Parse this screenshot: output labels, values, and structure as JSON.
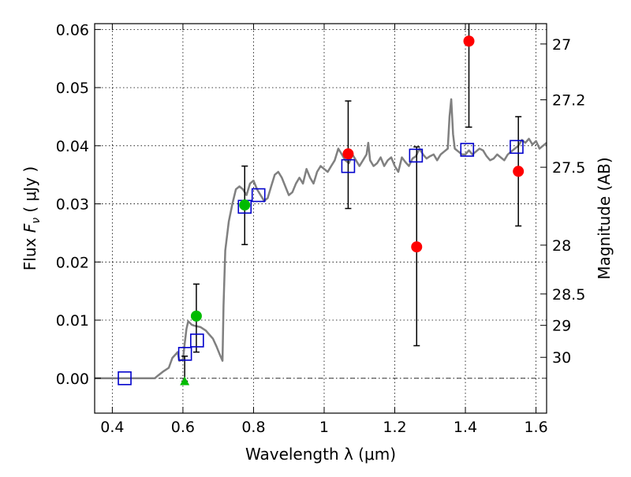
{
  "chart_data": {
    "type": "scatter",
    "xlabel": "Wavelength  λ (μm)",
    "ylabel": "Flux  F_ν  ( μJy )",
    "ylabel_parts": {
      "prefix": "Flux  ",
      "symbol": "F",
      "subscript": "ν",
      "unit": "  ( μJy )"
    },
    "y2label": "Magnitude (AB)",
    "xlim": [
      0.35,
      1.63
    ],
    "ylim": [
      -0.006,
      0.061
    ],
    "xticks": [
      0.4,
      0.6,
      0.8,
      1.0,
      1.2,
      1.4,
      1.6
    ],
    "xtick_labels": [
      "0.4",
      "0.6",
      "0.8",
      "1",
      "1.2",
      "1.4",
      "1.6"
    ],
    "yticks": [
      0.0,
      0.01,
      0.02,
      0.03,
      0.04,
      0.05,
      0.06
    ],
    "ytick_labels": [
      "0.00",
      "0.01",
      "0.02",
      "0.03",
      "0.04",
      "0.05",
      "0.06"
    ],
    "magnitude_ticks": [
      {
        "label": "27",
        "flux": 0.0575
      },
      {
        "label": "27.2",
        "flux": 0.0479
      },
      {
        "label": "27.5",
        "flux": 0.0363
      },
      {
        "label": "28",
        "flux": 0.0229
      },
      {
        "label": "28.5",
        "flux": 0.0145
      },
      {
        "label": "29",
        "flux": 0.0091
      },
      {
        "label": "30",
        "flux": 0.0036
      }
    ],
    "grid": true,
    "colors": {
      "model": "#808080",
      "measured": "#ff0000",
      "measured_alt": "#00bb00",
      "synthetic": "#0000cc",
      "errorbar": "#000000",
      "zero_line": "#333333"
    },
    "model_spectrum": [
      [
        0.35,
        0.0
      ],
      [
        0.52,
        0.0
      ],
      [
        0.53,
        0.0005
      ],
      [
        0.545,
        0.0012
      ],
      [
        0.56,
        0.0018
      ],
      [
        0.57,
        0.0035
      ],
      [
        0.585,
        0.0045
      ],
      [
        0.59,
        0.003
      ],
      [
        0.6,
        0.0032
      ],
      [
        0.605,
        0.006
      ],
      [
        0.61,
        0.0085
      ],
      [
        0.615,
        0.0098
      ],
      [
        0.625,
        0.0092
      ],
      [
        0.635,
        0.009
      ],
      [
        0.65,
        0.0088
      ],
      [
        0.665,
        0.0082
      ],
      [
        0.675,
        0.0075
      ],
      [
        0.685,
        0.0068
      ],
      [
        0.695,
        0.0055
      ],
      [
        0.705,
        0.004
      ],
      [
        0.712,
        0.003
      ],
      [
        0.715,
        0.0125
      ],
      [
        0.72,
        0.022
      ],
      [
        0.73,
        0.027
      ],
      [
        0.74,
        0.03
      ],
      [
        0.75,
        0.0325
      ],
      [
        0.76,
        0.033
      ],
      [
        0.77,
        0.0325
      ],
      [
        0.78,
        0.0315
      ],
      [
        0.79,
        0.0335
      ],
      [
        0.8,
        0.034
      ],
      [
        0.81,
        0.0325
      ],
      [
        0.82,
        0.0315
      ],
      [
        0.83,
        0.0305
      ],
      [
        0.84,
        0.031
      ],
      [
        0.85,
        0.033
      ],
      [
        0.86,
        0.035
      ],
      [
        0.87,
        0.0355
      ],
      [
        0.88,
        0.0345
      ],
      [
        0.89,
        0.033
      ],
      [
        0.9,
        0.0315
      ],
      [
        0.91,
        0.032
      ],
      [
        0.92,
        0.0335
      ],
      [
        0.93,
        0.0345
      ],
      [
        0.94,
        0.0335
      ],
      [
        0.95,
        0.036
      ],
      [
        0.96,
        0.0345
      ],
      [
        0.97,
        0.0335
      ],
      [
        0.975,
        0.0345
      ],
      [
        0.98,
        0.0355
      ],
      [
        0.99,
        0.0365
      ],
      [
        1.0,
        0.036
      ],
      [
        1.01,
        0.0355
      ],
      [
        1.02,
        0.0365
      ],
      [
        1.03,
        0.0375
      ],
      [
        1.04,
        0.0395
      ],
      [
        1.05,
        0.0385
      ],
      [
        1.06,
        0.0375
      ],
      [
        1.07,
        0.037
      ],
      [
        1.08,
        0.0385
      ],
      [
        1.09,
        0.0375
      ],
      [
        1.1,
        0.0365
      ],
      [
        1.11,
        0.0375
      ],
      [
        1.12,
        0.0385
      ],
      [
        1.125,
        0.0405
      ],
      [
        1.13,
        0.0375
      ],
      [
        1.14,
        0.0365
      ],
      [
        1.15,
        0.037
      ],
      [
        1.16,
        0.038
      ],
      [
        1.17,
        0.0365
      ],
      [
        1.18,
        0.0375
      ],
      [
        1.19,
        0.038
      ],
      [
        1.2,
        0.0365
      ],
      [
        1.21,
        0.0355
      ],
      [
        1.22,
        0.038
      ],
      [
        1.23,
        0.0372
      ],
      [
        1.24,
        0.0365
      ],
      [
        1.25,
        0.0378
      ],
      [
        1.26,
        0.0382
      ],
      [
        1.27,
        0.0395
      ],
      [
        1.28,
        0.0385
      ],
      [
        1.29,
        0.0378
      ],
      [
        1.3,
        0.0382
      ],
      [
        1.31,
        0.0385
      ],
      [
        1.32,
        0.0375
      ],
      [
        1.33,
        0.0385
      ],
      [
        1.34,
        0.039
      ],
      [
        1.35,
        0.0395
      ],
      [
        1.355,
        0.045
      ],
      [
        1.36,
        0.048
      ],
      [
        1.365,
        0.042
      ],
      [
        1.37,
        0.0395
      ],
      [
        1.38,
        0.039
      ],
      [
        1.39,
        0.0385
      ],
      [
        1.4,
        0.0385
      ],
      [
        1.41,
        0.0392
      ],
      [
        1.42,
        0.0385
      ],
      [
        1.43,
        0.039
      ],
      [
        1.44,
        0.0395
      ],
      [
        1.45,
        0.0392
      ],
      [
        1.46,
        0.0382
      ],
      [
        1.47,
        0.0375
      ],
      [
        1.48,
        0.0378
      ],
      [
        1.49,
        0.0385
      ],
      [
        1.5,
        0.038
      ],
      [
        1.51,
        0.0375
      ],
      [
        1.52,
        0.0385
      ],
      [
        1.53,
        0.039
      ],
      [
        1.54,
        0.0395
      ],
      [
        1.55,
        0.04
      ],
      [
        1.56,
        0.041
      ],
      [
        1.57,
        0.0405
      ],
      [
        1.58,
        0.0412
      ],
      [
        1.59,
        0.0402
      ],
      [
        1.6,
        0.0408
      ],
      [
        1.61,
        0.0395
      ],
      [
        1.62,
        0.04
      ],
      [
        1.63,
        0.0405
      ]
    ],
    "synthetic_photometry": [
      {
        "x": 0.435,
        "y": 0.0
      },
      {
        "x": 0.606,
        "y": 0.0042
      },
      {
        "x": 0.64,
        "y": 0.0065
      },
      {
        "x": 0.775,
        "y": 0.0295
      },
      {
        "x": 0.814,
        "y": 0.0315
      },
      {
        "x": 1.068,
        "y": 0.0365
      },
      {
        "x": 1.26,
        "y": 0.0383
      },
      {
        "x": 1.405,
        "y": 0.0393
      },
      {
        "x": 1.545,
        "y": 0.0398
      }
    ],
    "measured_photometry": [
      {
        "x": 0.638,
        "y": 0.0107,
        "yerr_low": 0.0062,
        "yerr_high": 0.0055,
        "color": "green"
      },
      {
        "x": 0.775,
        "y": 0.0298,
        "yerr_low": 0.0068,
        "yerr_high": 0.0067,
        "color": "green"
      },
      {
        "x": 1.068,
        "y": 0.0386,
        "yerr_low": 0.0094,
        "yerr_high": 0.0091,
        "color": "red"
      },
      {
        "x": 1.262,
        "y": 0.0226,
        "yerr_low": 0.017,
        "yerr_high": 0.0172,
        "color": "red"
      },
      {
        "x": 1.41,
        "y": 0.058,
        "yerr_low": 0.0148,
        "yerr_high": 0.004,
        "color": "red"
      },
      {
        "x": 1.55,
        "y": 0.0356,
        "yerr_low": 0.0094,
        "yerr_high": 0.0094,
        "color": "red"
      }
    ],
    "upper_limits": [
      {
        "x": 0.605,
        "y": -0.0005,
        "yerr_high": 0.0043,
        "color": "green"
      }
    ]
  }
}
